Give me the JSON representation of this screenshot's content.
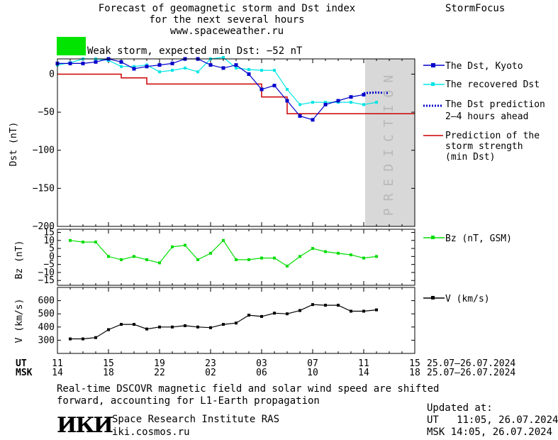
{
  "header": {
    "title_line1": "Forecast of geomagnetic storm and Dst index",
    "title_line2": "for the next several hours",
    "url": "www.spaceweather.ru",
    "brand": "StormFocus",
    "status_color": "#00e400",
    "status_text": "Weak storm, expected min Dst: −52 nT"
  },
  "legend": {
    "dst_kyoto": "The Dst, Kyoto",
    "dst_recovered": "The recovered Dst",
    "dst_prediction_1": "The Dst prediction",
    "dst_prediction_2": "2–4 hours ahead",
    "strength_1": "Prediction of the",
    "strength_2": "storm strength",
    "strength_3": "(min Dst)",
    "bz": "Bz (nT, GSM)",
    "v": "V (km/s)"
  },
  "prediction_label": "PREDICTION",
  "time_axis": {
    "ut_label": "UT",
    "msk_label": "MSK",
    "ut_ticks": [
      "11",
      "15",
      "19",
      "23",
      "03",
      "07",
      "11",
      "15"
    ],
    "msk_ticks": [
      "14",
      "18",
      "22",
      "02",
      "06",
      "10",
      "14",
      "18"
    ],
    "date_range_ut": "25.07–26.07.2024",
    "date_range_msk": "25.07–26.07.2024"
  },
  "footer": {
    "note_line1": "Real-time DSCOVR magnetic field and solar wind speed are shifted",
    "note_line2": "forward, accounting for L1-Earth propagation",
    "logo_text": "ИКИ",
    "institute": "Space Research Institute RAS",
    "site": "iki.cosmos.ru",
    "updated_label": "Updated at:",
    "updated_ut": "UT   11:05, 26.07.2024",
    "updated_msk": "MSK 14:05, 26.07.2024"
  },
  "colors": {
    "kyoto": "#0000cc",
    "recovered": "#00e5e5",
    "prediction": "#0000cc",
    "strength": "#cc0000",
    "bz": "#00dd00",
    "v": "#000000",
    "prediction_zone": "#d8d8d8"
  },
  "chart_data": [
    {
      "type": "line",
      "ylabel": "Dst (nT)",
      "ylim": [
        -200,
        20
      ],
      "y_ticks": [
        "0",
        "−50",
        "−100",
        "−150",
        "−200"
      ],
      "x_hours_range": [
        11,
        39
      ],
      "prediction_start_hour": 35,
      "series": [
        {
          "name": "The Dst, Kyoto",
          "x": [
            11,
            12,
            13,
            14,
            15,
            16,
            17,
            18,
            19,
            20,
            21,
            22,
            23,
            24,
            25,
            26,
            27,
            28,
            29,
            30,
            31,
            32,
            33,
            34,
            35
          ],
          "values": [
            14,
            14,
            14,
            16,
            20,
            16,
            7,
            10,
            12,
            14,
            20,
            20,
            12,
            8,
            12,
            0,
            -20,
            -15,
            -35,
            -55,
            -60,
            -40,
            -35,
            -30,
            -27
          ]
        },
        {
          "name": "The recovered Dst",
          "x": [
            11,
            12,
            13,
            14,
            15,
            16,
            17,
            18,
            19,
            20,
            21,
            22,
            23,
            24,
            25,
            26,
            27,
            28,
            29,
            30,
            31,
            32,
            33,
            34,
            35,
            36
          ],
          "values": [
            12,
            15,
            20,
            20,
            18,
            10,
            10,
            12,
            3,
            5,
            8,
            3,
            20,
            22,
            8,
            6,
            5,
            5,
            -20,
            -40,
            -37,
            -37,
            -37,
            -37,
            -40,
            -37
          ]
        },
        {
          "name": "The Dst prediction 2–4 hours ahead",
          "x": [
            35,
            36,
            37
          ],
          "values": [
            -25,
            -24,
            -25
          ]
        },
        {
          "name": "Prediction of the storm strength (min Dst)",
          "step": true,
          "x": [
            11,
            16,
            16,
            18,
            18,
            27,
            27,
            28,
            28,
            29,
            29,
            39
          ],
          "values": [
            0,
            0,
            -5,
            -5,
            -13,
            -13,
            -30,
            -30,
            -30,
            -30,
            -52,
            -52
          ]
        }
      ]
    },
    {
      "type": "line",
      "ylabel": "Bz (nT)",
      "ylim": [
        -18,
        17
      ],
      "y_ticks": [
        "15",
        "10",
        "5",
        "0",
        "−5",
        "−10",
        "−15"
      ],
      "series": [
        {
          "name": "Bz (nT, GSM)",
          "x": [
            12,
            13,
            14,
            15,
            16,
            17,
            18,
            19,
            20,
            21,
            22,
            23,
            24,
            25,
            26,
            27,
            28,
            29,
            30,
            31,
            32,
            33,
            34,
            35,
            36
          ],
          "values": [
            10,
            9,
            9,
            0,
            -2,
            0,
            -2,
            -4,
            6,
            7,
            -2,
            2,
            10,
            -2,
            -2,
            -1,
            -1,
            -6,
            0,
            5,
            3,
            2,
            1,
            -1,
            0
          ]
        }
      ]
    },
    {
      "type": "line",
      "ylabel": "V (km/s)",
      "ylim": [
        200,
        700
      ],
      "y_ticks": [
        "300",
        "400",
        "500",
        "600"
      ],
      "series": [
        {
          "name": "V (km/s)",
          "x": [
            12,
            13,
            14,
            15,
            16,
            17,
            18,
            19,
            20,
            21,
            22,
            23,
            24,
            25,
            26,
            27,
            28,
            29,
            30,
            31,
            32,
            33,
            34,
            35,
            36
          ],
          "values": [
            310,
            310,
            320,
            380,
            420,
            420,
            385,
            400,
            400,
            410,
            400,
            395,
            420,
            430,
            490,
            480,
            505,
            500,
            525,
            570,
            565,
            565,
            520,
            520,
            530
          ]
        }
      ]
    }
  ]
}
